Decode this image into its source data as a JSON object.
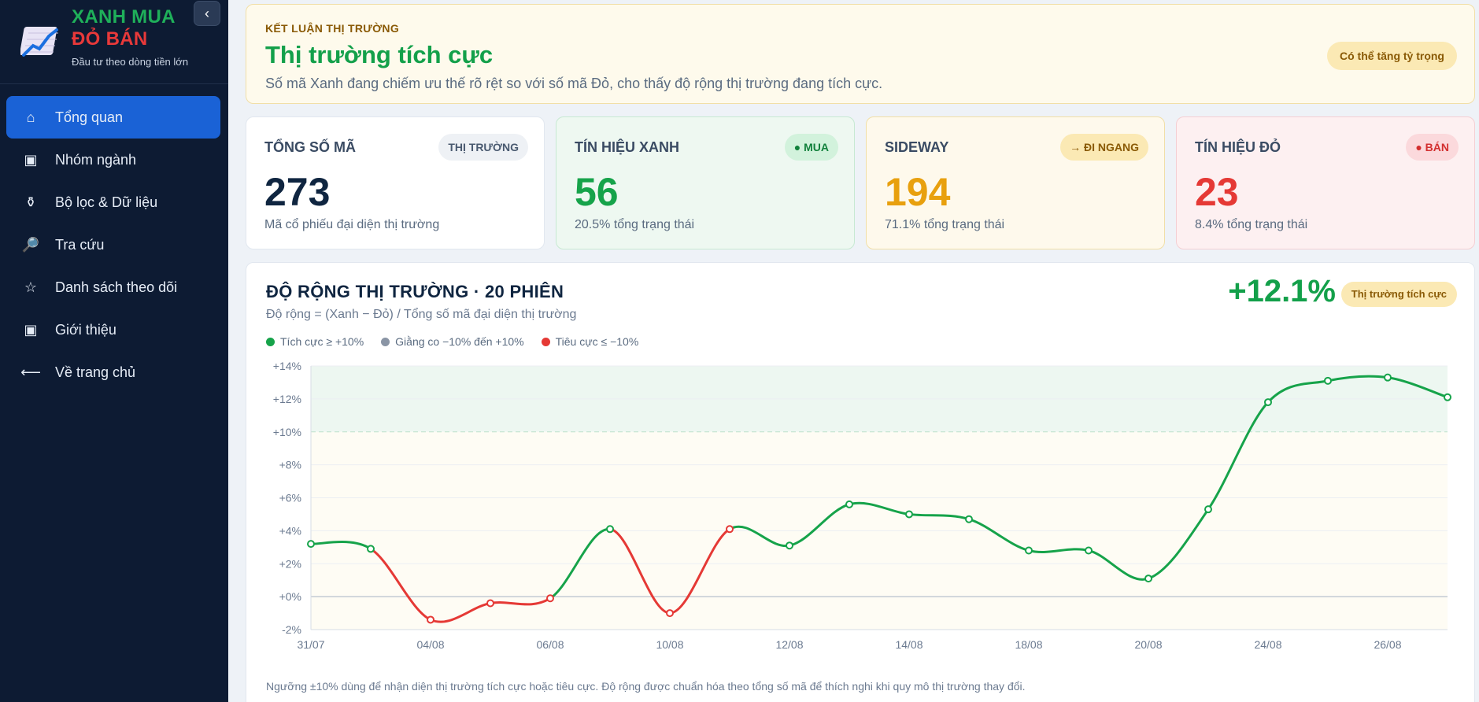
{
  "sidebar": {
    "brand_line1": "XANH MUA",
    "brand_line2": "ĐỎ BÁN",
    "brand_sub": "Đầu tư theo dòng tiền lớn",
    "collapse_glyph": "‹",
    "items": [
      {
        "label": "Tổng quan",
        "icon": "home-icon",
        "glyph": "⌂",
        "active": true
      },
      {
        "label": "Nhóm ngành",
        "icon": "square-icon",
        "glyph": "▣",
        "active": false
      },
      {
        "label": "Bộ lọc & Dữ liệu",
        "icon": "filter-icon",
        "glyph": "⚱",
        "active": false
      },
      {
        "label": "Tra cứu",
        "icon": "magnifier-icon",
        "glyph": "🔎",
        "active": false
      },
      {
        "label": "Danh sách theo dõi",
        "icon": "star-icon",
        "glyph": "☆",
        "active": false
      },
      {
        "label": "Giới thiệu",
        "icon": "square-icon",
        "glyph": "▣",
        "active": false
      },
      {
        "label": "Về trang chủ",
        "icon": "arrow-left-icon",
        "glyph": "⟵",
        "active": false
      }
    ]
  },
  "verdict": {
    "kicker": "KẾT LUẬN THỊ TRƯỜNG",
    "title": "Thị trường tích cực",
    "desc": "Số mã Xanh đang chiếm ưu thế rõ rệt so với số mã Đỏ, cho thấy độ rộng thị trường đang tích cực.",
    "badge": "Có thể tăng tỷ trọng"
  },
  "cards": [
    {
      "label": "TỔNG SỐ MÃ",
      "tag": "THỊ TRƯỜNG",
      "value": "273",
      "sub": "Mã cổ phiếu đại diện thị trường"
    },
    {
      "label": "TÍN HIỆU XANH",
      "tag": "● MUA",
      "value": "56",
      "sub": "20.5% tổng trạng thái"
    },
    {
      "label": "SIDEWAY",
      "tag": "→ ĐI NGANG",
      "value": "194",
      "sub": "71.1% tổng trạng thái"
    },
    {
      "label": "TÍN HIỆU ĐỎ",
      "tag": "● BÁN",
      "value": "23",
      "sub": "8.4% tổng trạng thái"
    }
  ],
  "breadth": {
    "title": "ĐỘ RỘNG THỊ TRƯỜNG · 20 PHIÊN",
    "subtitle": "Độ rộng = (Xanh − Đỏ) / Tổng số mã đại diện thị trường",
    "big_value": "+12.1%",
    "badge": "Thị trường tích cực",
    "legend": [
      {
        "label": "Tích cực ≥ +10%",
        "color": "#16a34a"
      },
      {
        "label": "Giằng co −10% đến +10%",
        "color": "#8a95a5"
      },
      {
        "label": "Tiêu cực ≤ −10%",
        "color": "#e53935"
      }
    ],
    "note": "Ngưỡng ±10% dùng để nhận diện thị trường tích cực hoặc tiêu cực. Độ rộng được chuẩn hóa theo tổng số mã để thích nghi khi quy mô thị trường thay đổi."
  },
  "colors": {
    "green": "#16a34a",
    "red": "#e53935",
    "amber": "#e8a00e",
    "navy": "#0f2540",
    "sidebar": "#0d1b33",
    "accent": "#1a62d6"
  },
  "chart_data": {
    "type": "line",
    "ylim": [
      -2,
      14
    ],
    "yticks": [
      "+14%",
      "+12%",
      "+10%",
      "+8%",
      "+6%",
      "+4%",
      "+2%",
      "+0%",
      "-2%"
    ],
    "ytick_values": [
      14,
      12,
      10,
      8,
      6,
      4,
      2,
      0,
      -2
    ],
    "xtick_labels": [
      "31/07",
      "04/08",
      "06/08",
      "10/08",
      "12/08",
      "14/08",
      "18/08",
      "20/08",
      "24/08",
      "26/08"
    ],
    "xtick_index": [
      0,
      2,
      4,
      6,
      8,
      10,
      12,
      14,
      16,
      18
    ],
    "values": [
      3.2,
      2.9,
      -1.4,
      -0.4,
      -0.1,
      4.1,
      -1.0,
      4.1,
      3.1,
      5.6,
      5.0,
      4.7,
      2.8,
      2.8,
      1.1,
      5.3,
      11.8,
      13.1,
      13.3,
      12.1
    ],
    "segment_color": [
      "green",
      "red",
      "red",
      "red",
      "green",
      "red",
      "red",
      "green",
      "green",
      "green",
      "green",
      "green",
      "green",
      "green",
      "green",
      "green",
      "green",
      "green",
      "green"
    ],
    "thresholds": [
      10,
      0
    ]
  }
}
